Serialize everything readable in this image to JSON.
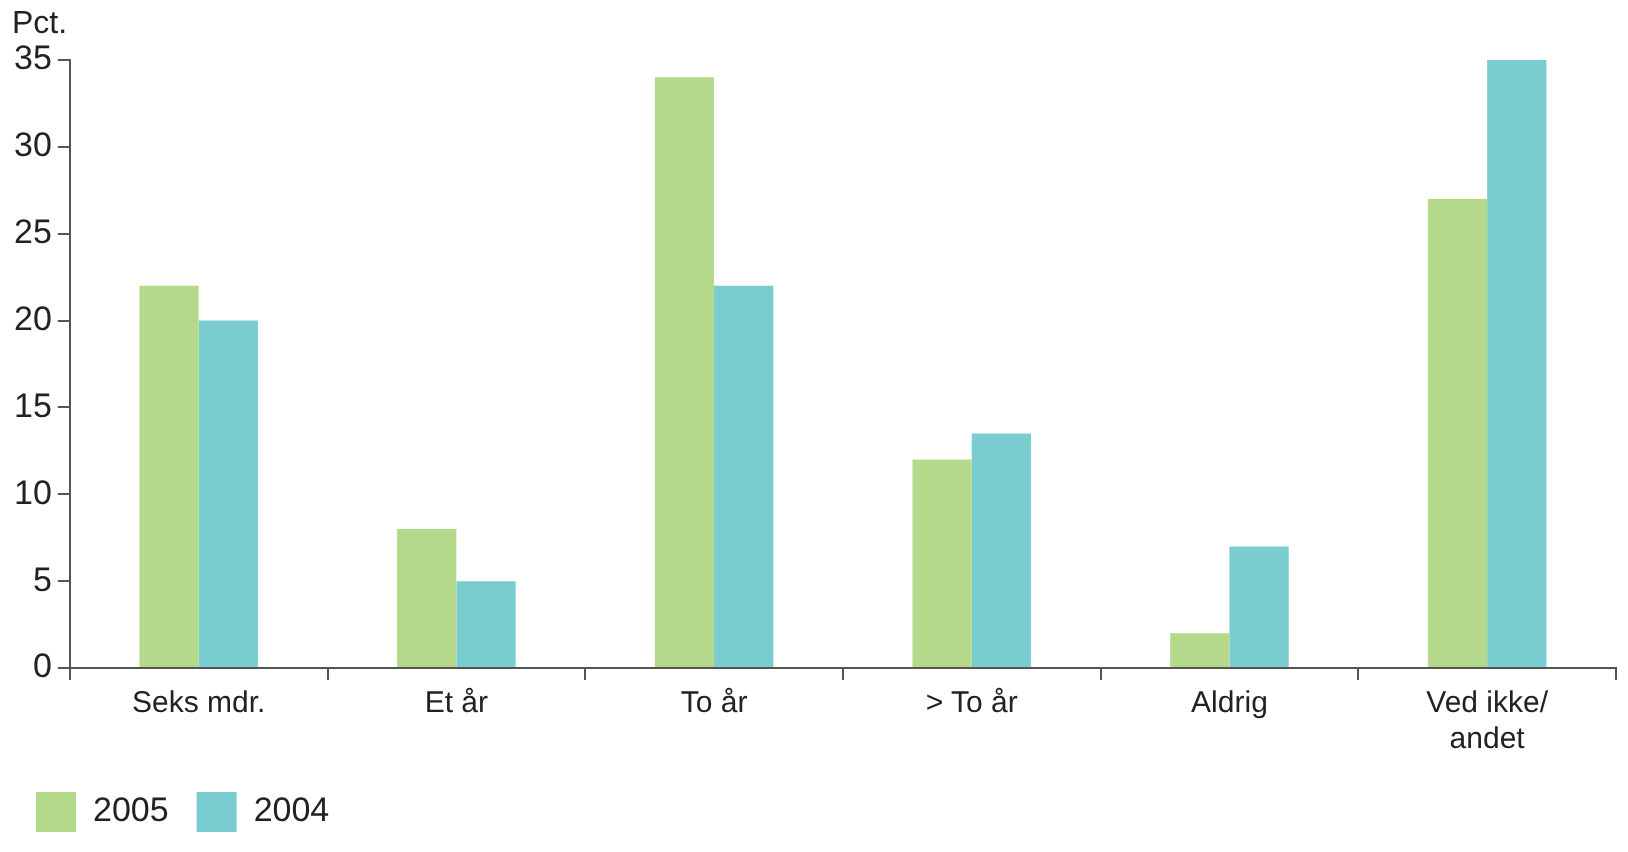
{
  "chart_data": {
    "type": "bar",
    "ylabel": "Pct.",
    "categories": [
      "Seks mdr.",
      "Et år",
      "To år",
      "> To år",
      "Aldrig",
      "Ved ikke/\nandet"
    ],
    "series": [
      {
        "name": "2005",
        "color": "#b5d98a",
        "values": [
          22,
          8,
          34,
          12,
          2,
          27
        ]
      },
      {
        "name": "2004",
        "color": "#79cdd0",
        "values": [
          20,
          5,
          22,
          13.5,
          7,
          35
        ]
      }
    ],
    "ylim": [
      0,
      35
    ],
    "yticks": [
      0,
      5,
      10,
      15,
      20,
      25,
      30,
      35
    ],
    "grid": false,
    "legend": "bottom left"
  }
}
